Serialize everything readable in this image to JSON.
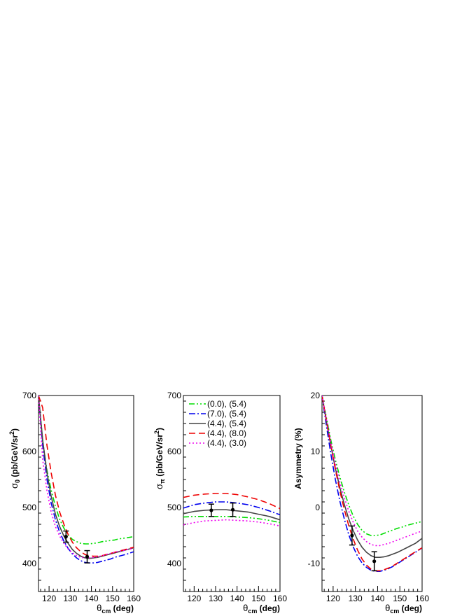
{
  "figure": {
    "background": "#ffffff"
  },
  "legend": {
    "placement": "top-left of middle panel",
    "entries": [
      {
        "label": "(0.0), (5.4)",
        "color": "#00dd00",
        "dash": "dash-dot-dot"
      },
      {
        "label": "(7.0), (5.4)",
        "color": "#0000ee",
        "dash": "dash-dot"
      },
      {
        "label": "(4.4), (5.4)",
        "color": "#444444",
        "dash": "solid"
      },
      {
        "label": "(4.4), (8.0)",
        "color": "#ee0000",
        "dash": "dashed"
      },
      {
        "label": "(4.4), (3.0)",
        "color": "#ee00ee",
        "dash": "dotted"
      }
    ]
  },
  "chart_data": [
    {
      "type": "line",
      "xlabel": {
        "main": "θ",
        "sub": "cm",
        "rest": " (deg)"
      },
      "ylabel": {
        "main": "σ",
        "sub": "0",
        "rest": " (pb/GeV/sr",
        "sup": "2",
        "end": ")"
      },
      "xlim": [
        115,
        160
      ],
      "ylim": [
        350,
        700
      ],
      "xticks": [
        120,
        130,
        140,
        150,
        160
      ],
      "yticks": [
        400,
        500,
        600,
        700
      ],
      "x": [
        115,
        117,
        119,
        121,
        123,
        125,
        127,
        129,
        131,
        133,
        135,
        137,
        139,
        141,
        143,
        145,
        147,
        149,
        151,
        153,
        155,
        157,
        160
      ],
      "series": [
        {
          "name": "(0.0), (5.4)",
          "color": "#00dd00",
          "dash": "dash-dot-dot",
          "values": [
            700,
            618,
            566,
            531,
            502,
            479,
            463,
            451,
            443,
            439,
            436,
            435,
            435,
            436,
            437,
            439,
            440,
            441,
            442,
            444,
            445,
            446,
            448
          ]
        },
        {
          "name": "(7.0), (5.4)",
          "color": "#0000ee",
          "dash": "dash-dot",
          "values": [
            700,
            610,
            550,
            508,
            478,
            456,
            440,
            427,
            417,
            410,
            405,
            402,
            401,
            401,
            402,
            404,
            406,
            408,
            411,
            413,
            415,
            417,
            421
          ]
        },
        {
          "name": "(4.4), (5.4)",
          "color": "#444444",
          "dash": "solid",
          "values": [
            700,
            620,
            562,
            520,
            488,
            466,
            449,
            436,
            425,
            418,
            413,
            410,
            409,
            410,
            411,
            413,
            415,
            417,
            419,
            421,
            423,
            425,
            428
          ]
        },
        {
          "name": "(4.4), (8.0)",
          "color": "#ee0000",
          "dash": "dashed",
          "values": [
            700,
            678,
            611,
            562,
            522,
            492,
            470,
            452,
            438,
            428,
            421,
            416,
            414,
            413,
            413,
            414,
            416,
            418,
            420,
            422,
            424,
            426,
            429
          ]
        },
        {
          "name": "(4.4), (3.0)",
          "color": "#ee00ee",
          "dash": "dotted",
          "values": [
            700,
            585,
            530,
            492,
            466,
            449,
            436,
            426,
            419,
            414,
            411,
            410,
            410,
            411,
            412,
            414,
            416,
            418,
            420,
            422,
            423,
            425,
            427
          ]
        }
      ],
      "points": [
        {
          "x": 128,
          "y": 448,
          "yerr": 10
        },
        {
          "x": 138,
          "y": 412,
          "yerr": 11
        }
      ]
    },
    {
      "type": "line",
      "xlabel": {
        "main": "θ",
        "sub": "cm",
        "rest": " (deg)"
      },
      "ylabel": {
        "main": "σ",
        "sub": "π",
        "rest": " (pb/GeV/sr",
        "sup": "2",
        "end": ")"
      },
      "xlim": [
        115,
        160
      ],
      "ylim": [
        350,
        700
      ],
      "xticks": [
        120,
        130,
        140,
        150,
        160
      ],
      "yticks": [
        400,
        500,
        600,
        700
      ],
      "x": [
        115,
        120,
        125,
        130,
        135,
        140,
        145,
        150,
        155,
        160
      ],
      "series": [
        {
          "name": "(0.0), (5.4)",
          "color": "#00dd00",
          "dash": "dash-dot-dot",
          "values": [
            483,
            484,
            484,
            484,
            484,
            483,
            482,
            480,
            477,
            473
          ]
        },
        {
          "name": "(7.0), (5.4)",
          "color": "#0000ee",
          "dash": "dash-dot",
          "values": [
            499,
            505,
            508,
            510,
            510,
            508,
            505,
            500,
            494,
            487
          ]
        },
        {
          "name": "(4.4), (5.4)",
          "color": "#444444",
          "dash": "solid",
          "values": [
            489,
            493,
            495,
            496,
            496,
            494,
            492,
            488,
            484,
            478
          ]
        },
        {
          "name": "(4.4), (8.0)",
          "color": "#ee0000",
          "dash": "dashed",
          "values": [
            518,
            522,
            524,
            525,
            525,
            523,
            519,
            514,
            507,
            498
          ]
        },
        {
          "name": "(4.4), (3.0)",
          "color": "#ee00ee",
          "dash": "dotted",
          "values": [
            469,
            473,
            476,
            477,
            478,
            477,
            476,
            474,
            471,
            467
          ]
        }
      ],
      "points": [
        {
          "x": 128,
          "y": 495,
          "yerr": 11
        },
        {
          "x": 138,
          "y": 496,
          "yerr": 12
        }
      ]
    },
    {
      "type": "line",
      "xlabel": {
        "main": "θ",
        "sub": "cm",
        "rest": " (deg)"
      },
      "ylabel": {
        "main": "Asymmetry  (%)",
        "sub": "",
        "rest": "",
        "sup": "",
        "end": ""
      },
      "xlim": [
        115,
        160
      ],
      "ylim": [
        -15,
        20
      ],
      "xticks": [
        120,
        130,
        140,
        150,
        160
      ],
      "yticks": [
        -10,
        0,
        10,
        20
      ],
      "x": [
        115,
        117,
        119,
        121,
        123,
        125,
        127,
        129,
        131,
        133,
        135,
        137,
        139,
        141,
        143,
        145,
        147,
        149,
        151,
        153,
        155,
        157,
        160
      ],
      "series": [
        {
          "name": "(0.0), (5.4)",
          "color": "#00dd00",
          "dash": "dash-dot-dot",
          "values": [
            20,
            16,
            12,
            8.5,
            5.5,
            2.8,
            0.5,
            -1.5,
            -3.0,
            -4.1,
            -4.7,
            -5.0,
            -5.0,
            -4.9,
            -4.6,
            -4.3,
            -4.0,
            -3.7,
            -3.5,
            -3.2,
            -3.0,
            -2.8,
            -2.5
          ]
        },
        {
          "name": "(7.0), (5.4)",
          "color": "#0000ee",
          "dash": "dash-dot",
          "values": [
            20,
            14.5,
            9.5,
            5.0,
            1.2,
            -2.0,
            -4.8,
            -7.0,
            -8.7,
            -9.9,
            -10.7,
            -11.2,
            -11.4,
            -11.4,
            -11.2,
            -10.9,
            -10.5,
            -10.0,
            -9.5,
            -9.0,
            -8.5,
            -8.0,
            -7.2
          ]
        },
        {
          "name": "(4.4), (5.4)",
          "color": "#444444",
          "dash": "solid",
          "values": [
            20,
            15.3,
            11,
            7.0,
            3.6,
            0.6,
            -2.0,
            -4.1,
            -5.8,
            -7.1,
            -8.0,
            -8.6,
            -8.9,
            -8.9,
            -8.8,
            -8.6,
            -8.3,
            -8.0,
            -7.6,
            -7.2,
            -6.8,
            -6.4,
            -5.5
          ]
        },
        {
          "name": "(4.4), (8.0)",
          "color": "#ee0000",
          "dash": "dashed",
          "values": [
            20,
            15.5,
            11,
            6.8,
            3.0,
            -0.3,
            -3.2,
            -5.6,
            -7.6,
            -9.2,
            -10.3,
            -11.0,
            -11.3,
            -11.3,
            -11.1,
            -10.8,
            -10.4,
            -9.9,
            -9.4,
            -8.9,
            -8.4,
            -7.9,
            -7.2
          ]
        },
        {
          "name": "(4.4), (3.0)",
          "color": "#ee00ee",
          "dash": "dotted",
          "values": [
            20,
            15.7,
            11.6,
            7.8,
            4.6,
            1.8,
            -0.6,
            -2.6,
            -4.2,
            -5.3,
            -6.1,
            -6.6,
            -6.8,
            -6.8,
            -6.6,
            -6.4,
            -6.1,
            -5.8,
            -5.5,
            -5.2,
            -4.9,
            -4.6,
            -4.2
          ]
        }
      ],
      "points": [
        {
          "x": 128.5,
          "y": -5.0,
          "yerr": 1.7
        },
        {
          "x": 138.5,
          "y": -9.6,
          "yerr": 1.7
        }
      ]
    }
  ]
}
